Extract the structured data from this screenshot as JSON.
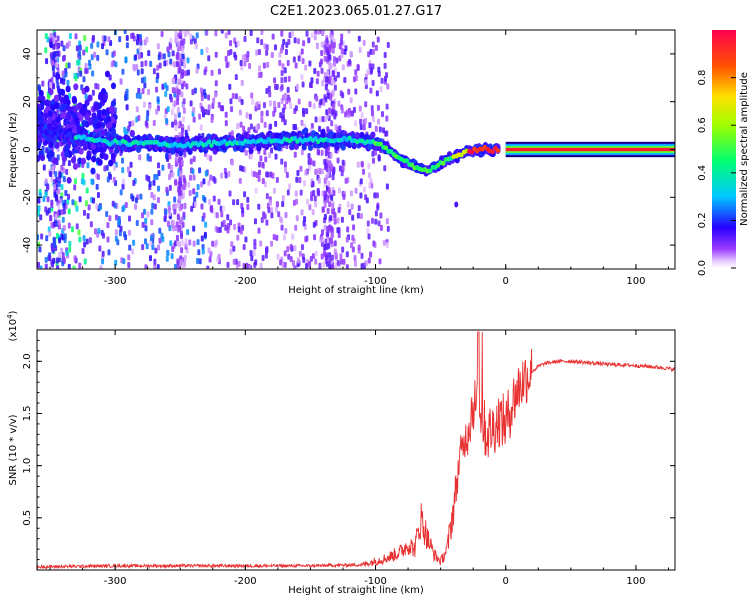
{
  "title": "C2E1.2023.065.01.27.G17",
  "chart_data": [
    {
      "type": "heatmap",
      "xlabel": "Height of straight line (km)",
      "ylabel": "Frequency (Hz)",
      "xlim": [
        -360,
        130
      ],
      "ylim": [
        -50,
        50
      ],
      "xticks": [
        -300,
        -200,
        -100,
        0,
        100
      ],
      "yticks": [
        -40,
        -20,
        0,
        20,
        40
      ],
      "colorbar": {
        "label": "Normalized spectral amplitude",
        "range": [
          0.0,
          1.0
        ],
        "ticks": [
          0.0,
          0.2,
          0.4,
          0.6,
          0.8
        ],
        "colormap": "rainbow (purple low → red high)"
      },
      "ridge": [
        {
          "x": -360,
          "y": 8
        },
        {
          "x": -340,
          "y": 6
        },
        {
          "x": -320,
          "y": 4
        },
        {
          "x": -300,
          "y": 3
        },
        {
          "x": -250,
          "y": 2
        },
        {
          "x": -200,
          "y": 3
        },
        {
          "x": -170,
          "y": 4
        },
        {
          "x": -140,
          "y": 4
        },
        {
          "x": -120,
          "y": 4
        },
        {
          "x": -100,
          "y": 3
        },
        {
          "x": -90,
          "y": 0
        },
        {
          "x": -80,
          "y": -4
        },
        {
          "x": -70,
          "y": -7
        },
        {
          "x": -60,
          "y": -9
        },
        {
          "x": -50,
          "y": -6
        },
        {
          "x": -40,
          "y": -3
        },
        {
          "x": -30,
          "y": -1
        },
        {
          "x": -20,
          "y": 0
        },
        {
          "x": -10,
          "y": 0
        },
        {
          "x": 0,
          "y": 0
        },
        {
          "x": 130,
          "y": 0
        }
      ]
    },
    {
      "type": "line",
      "xlabel": "Height of straight line (km)",
      "ylabel": "SNR (10 * v/v)",
      "y_multiplier": "(x10",
      "y_multiplier_exp": "4",
      "y_multiplier_close": ")",
      "xlim": [
        -360,
        130
      ],
      "ylim": [
        0,
        2.3
      ],
      "xticks": [
        -300,
        -200,
        -100,
        0,
        100
      ],
      "yticks": [
        0.5,
        1.0,
        1.5,
        2.0
      ],
      "ytick_labels": [
        "0.5",
        "1.0",
        "1.5",
        "2.0"
      ],
      "color": "#e83030",
      "series": [
        {
          "x": [
            -360,
            -300,
            -250,
            -200,
            -150,
            -110,
            -90,
            -80,
            -75,
            -70,
            -65,
            -60,
            -55,
            -50,
            -45,
            -40,
            -35,
            -30,
            -25,
            -20,
            -15,
            -10,
            -5,
            0,
            5,
            10,
            15,
            20,
            25,
            30,
            40,
            50,
            60,
            80,
            100,
            120,
            130
          ],
          "values": [
            0.03,
            0.04,
            0.04,
            0.04,
            0.04,
            0.05,
            0.12,
            0.18,
            0.25,
            0.2,
            0.5,
            0.3,
            0.15,
            0.08,
            0.2,
            0.6,
            1.1,
            1.3,
            1.6,
            1.55,
            1.3,
            1.35,
            1.45,
            1.4,
            1.6,
            1.75,
            1.85,
            1.9,
            1.95,
            1.98,
            2.0,
            2.0,
            1.99,
            1.97,
            1.96,
            1.94,
            1.92
          ]
        }
      ]
    }
  ]
}
